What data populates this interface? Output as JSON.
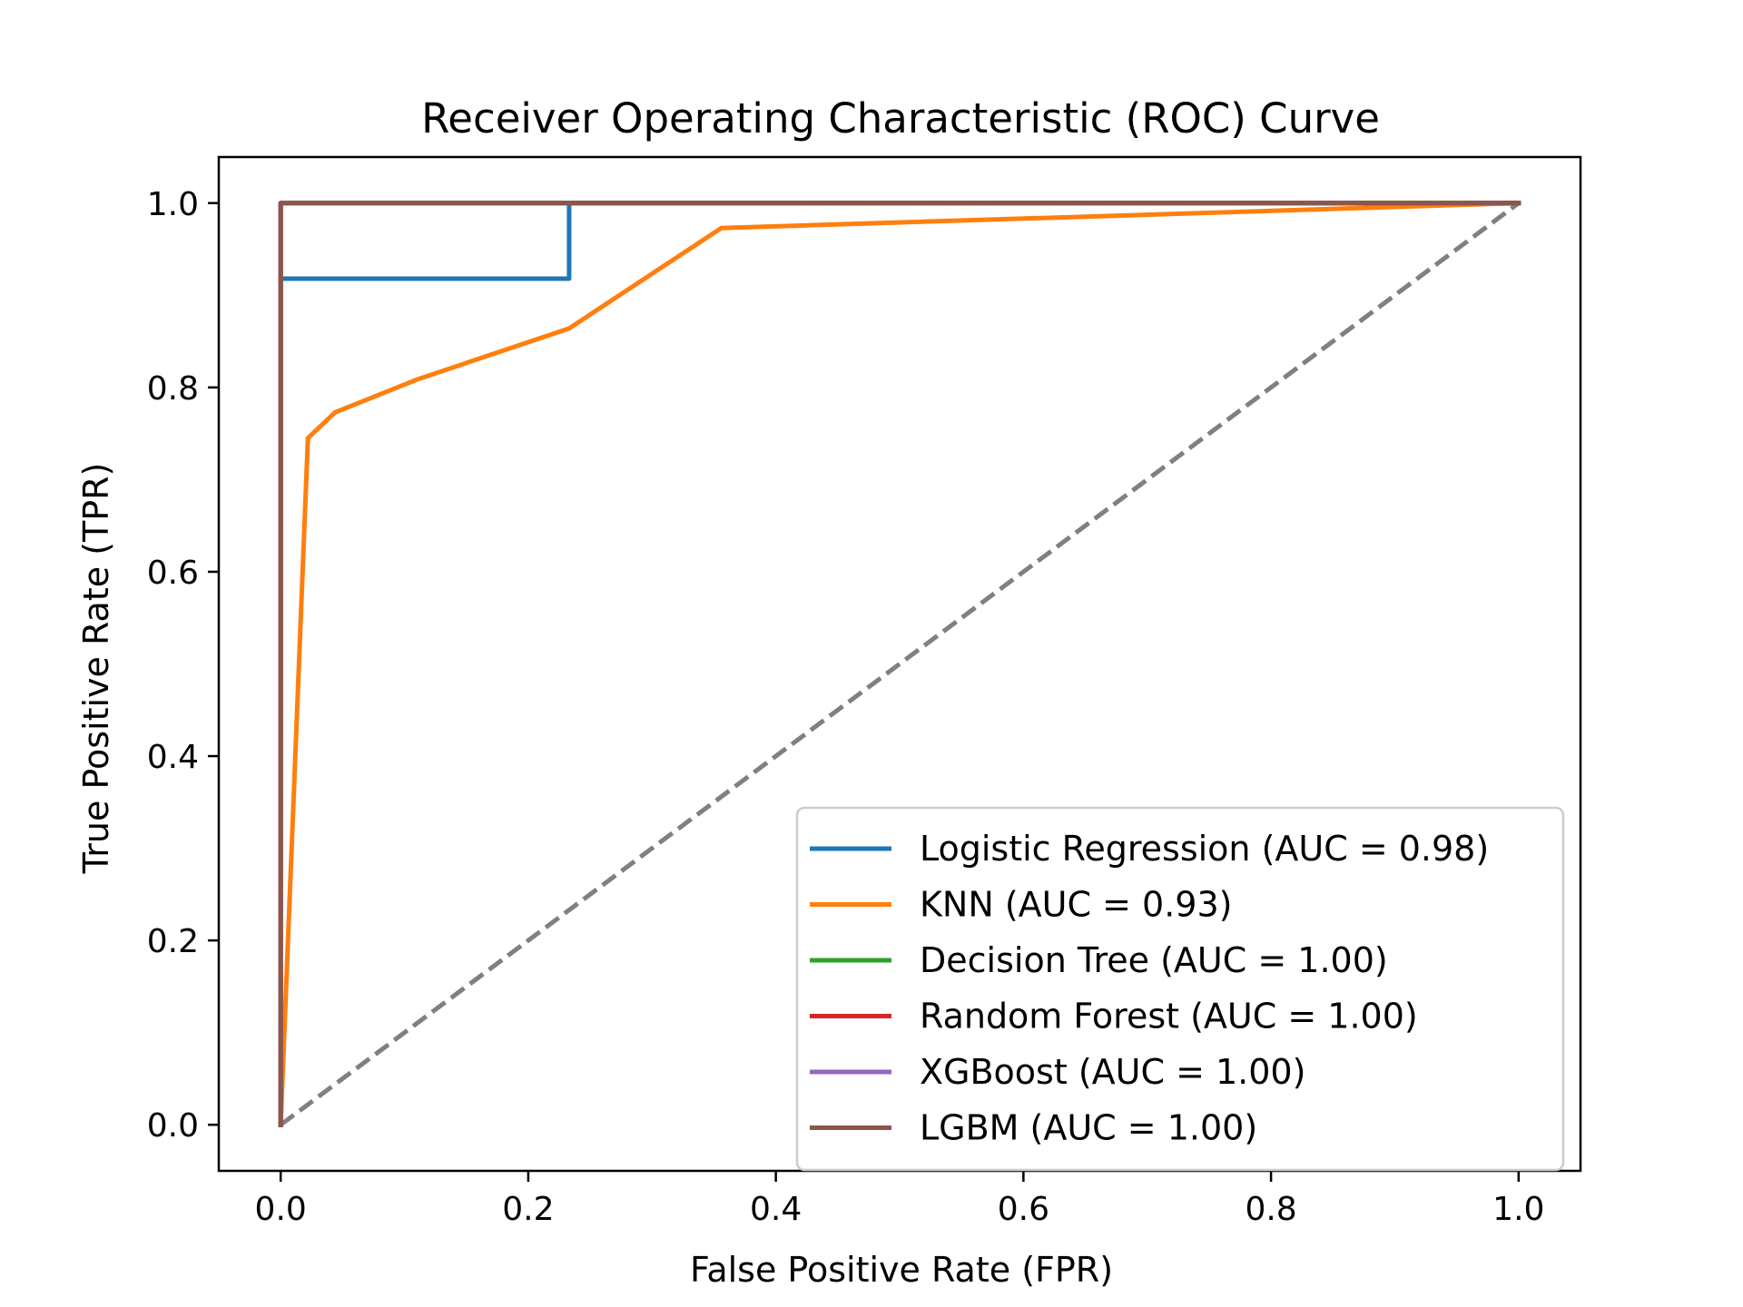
{
  "chart_data": {
    "type": "line",
    "title": "Receiver Operating Characteristic (ROC) Curve",
    "xlabel": "False Positive Rate (FPR)",
    "ylabel": "True Positive Rate (TPR)",
    "xlim": [
      -0.05,
      1.05
    ],
    "ylim": [
      -0.05,
      1.05
    ],
    "xticks": [
      "0.0",
      "0.2",
      "0.4",
      "0.6",
      "0.8",
      "1.0"
    ],
    "yticks": [
      "0.0",
      "0.2",
      "0.4",
      "0.6",
      "0.8",
      "1.0"
    ],
    "grid": false,
    "legend_position": "lower-right",
    "reference_line": {
      "x": [
        0,
        1
      ],
      "y": [
        0,
        1
      ],
      "color": "#808080",
      "style": "dashed"
    },
    "series": [
      {
        "name": "Logistic Regression (AUC = 0.98)",
        "color": "#1f77b4",
        "x": [
          0,
          0,
          0,
          0.233,
          0.233,
          1
        ],
        "y": [
          0,
          0.918,
          0.918,
          0.918,
          1,
          1
        ]
      },
      {
        "name": "KNN (AUC = 0.93)",
        "color": "#ff7f0e",
        "x": [
          0,
          0.022,
          0.044,
          0.111,
          0.233,
          0.356,
          1
        ],
        "y": [
          0,
          0.745,
          0.773,
          0.809,
          0.864,
          0.973,
          1
        ]
      },
      {
        "name": "Decision Tree (AUC = 1.00)",
        "color": "#2ca02c",
        "x": [
          0,
          0,
          1
        ],
        "y": [
          0,
          1,
          1
        ]
      },
      {
        "name": "Random Forest (AUC = 1.00)",
        "color": "#d62728",
        "x": [
          0,
          0,
          1
        ],
        "y": [
          0,
          1,
          1
        ]
      },
      {
        "name": "XGBoost (AUC = 1.00)",
        "color": "#9467bd",
        "x": [
          0,
          0,
          1
        ],
        "y": [
          0,
          1,
          1
        ]
      },
      {
        "name": "LGBM (AUC = 1.00)",
        "color": "#8c564b",
        "x": [
          0,
          0,
          1
        ],
        "y": [
          0,
          1,
          1
        ]
      }
    ]
  }
}
